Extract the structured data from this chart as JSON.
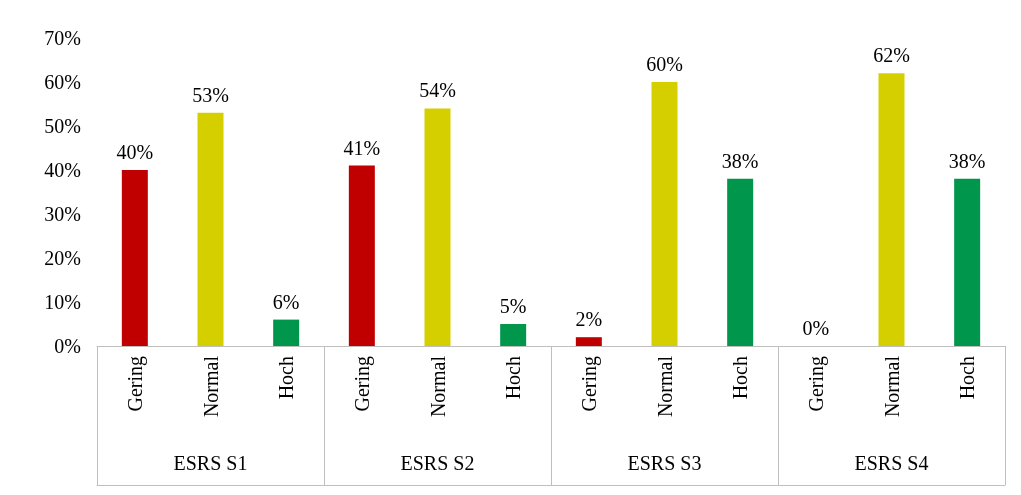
{
  "chart_data": {
    "type": "bar",
    "categories": [
      "Gering",
      "Normal",
      "Hoch",
      "Gering",
      "Normal",
      "Hoch",
      "Gering",
      "Normal",
      "Hoch",
      "Gering",
      "Normal",
      "Hoch"
    ],
    "values": [
      40,
      53,
      6,
      41,
      54,
      5,
      2,
      60,
      38,
      0,
      62,
      38
    ],
    "colors": [
      "#c00000",
      "#d6cf00",
      "#00964b",
      "#c00000",
      "#d6cf00",
      "#00964b",
      "#c00000",
      "#d6cf00",
      "#00964b",
      "#c00000",
      "#d6cf00",
      "#00964b"
    ],
    "value_labels": [
      "40%",
      "53%",
      "6%",
      "41%",
      "54%",
      "5%",
      "2%",
      "60%",
      "38%",
      "0%",
      "62%",
      "38%"
    ],
    "ylim": [
      0,
      70
    ],
    "yticks": [
      {
        "value": 0,
        "label": "0%"
      },
      {
        "value": 10,
        "label": "10%"
      },
      {
        "value": 20,
        "label": "20%"
      },
      {
        "value": 30,
        "label": "30%"
      },
      {
        "value": 40,
        "label": "40%"
      },
      {
        "value": 50,
        "label": "50%"
      },
      {
        "value": 60,
        "label": "60%"
      },
      {
        "value": 70,
        "label": "70%"
      }
    ],
    "annotations": [
      "ESRS S1",
      "ESRS S2",
      "ESRS S3",
      "ESRS S4"
    ]
  }
}
